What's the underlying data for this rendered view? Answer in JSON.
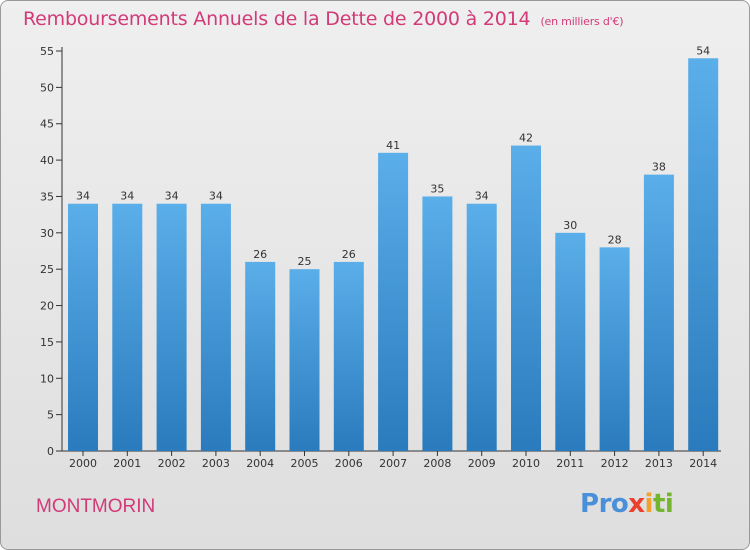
{
  "header": {
    "title": "Remboursements Annuels de la Dette de 2000 à 2014",
    "unit": "(en milliers d'€)"
  },
  "footer": {
    "commune": "MONTMORIN",
    "logo_letters": [
      "P",
      "r",
      "o",
      "x",
      "i",
      "ti"
    ]
  },
  "colors": {
    "accent": "#d23a78",
    "bar_light": "#5aaee9",
    "bar_dark": "#2a7bbd"
  },
  "chart_data": {
    "type": "bar",
    "title": "Remboursements Annuels de la Dette de 2000 à 2014",
    "xlabel": "",
    "ylabel": "",
    "categories": [
      "2000",
      "2001",
      "2002",
      "2003",
      "2004",
      "2005",
      "2006",
      "2007",
      "2008",
      "2009",
      "2010",
      "2011",
      "2012",
      "2013",
      "2014"
    ],
    "values": [
      34,
      34,
      34,
      34,
      26,
      25,
      26,
      41,
      35,
      34,
      42,
      30,
      28,
      38,
      54
    ],
    "ylim": [
      0,
      55
    ],
    "yticks": [
      0,
      5,
      10,
      15,
      20,
      25,
      30,
      35,
      40,
      45,
      50,
      55
    ],
    "grid": false,
    "legend": "none"
  }
}
